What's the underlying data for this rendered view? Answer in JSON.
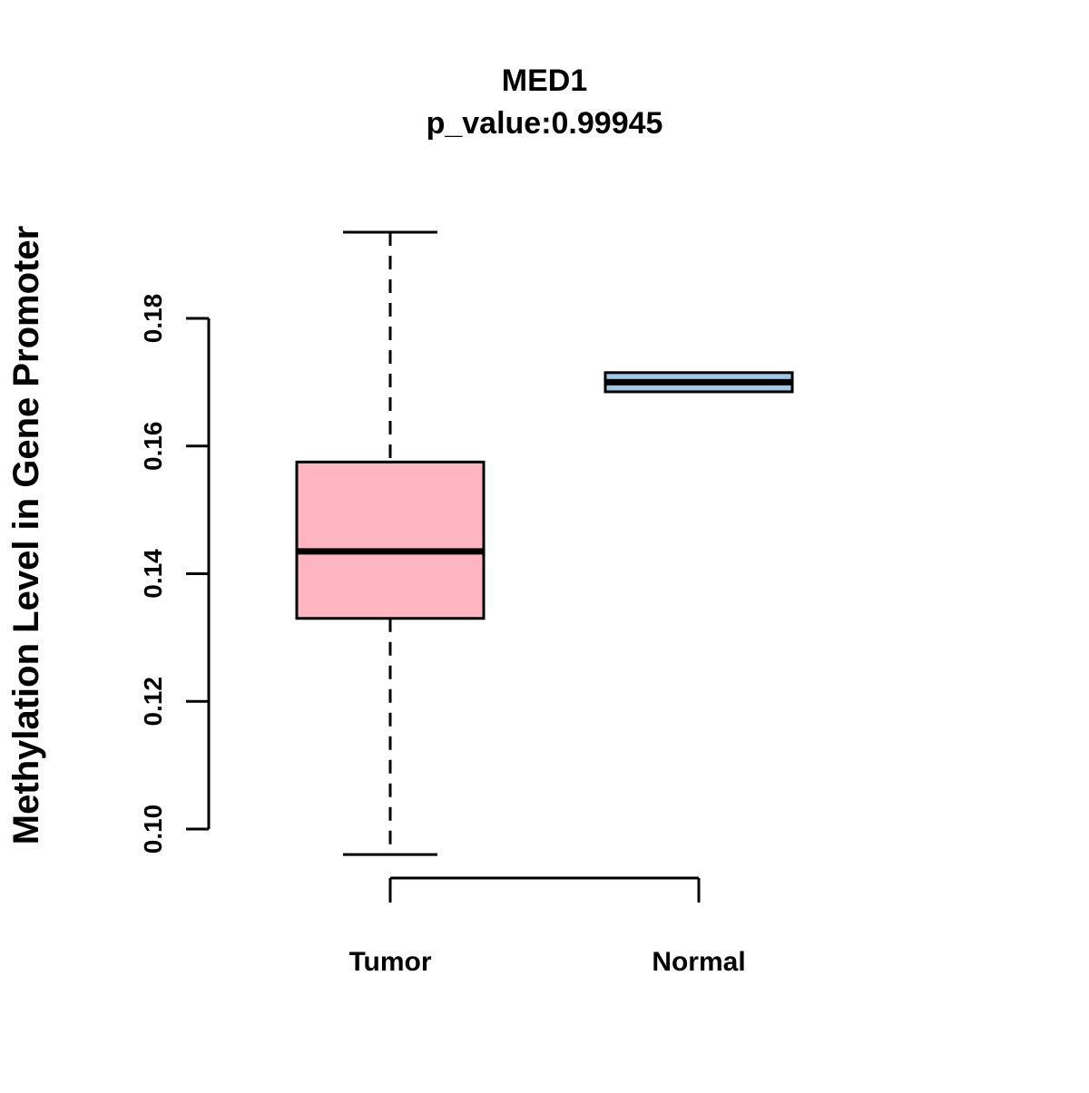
{
  "title": {
    "line1": "MED1",
    "line2": "p_value:0.99945"
  },
  "chart_data": {
    "type": "boxplot",
    "title": "MED1",
    "subtitle": "p_value:0.99945",
    "ylabel": "Methylation Level in Gene Promoter",
    "xlabel": "",
    "categories": [
      "Tumor",
      "Normal"
    ],
    "y_ticks": [
      0.1,
      0.12,
      0.14,
      0.16,
      0.18
    ],
    "ylim": [
      0.094,
      0.196
    ],
    "grid": false,
    "legend": "none",
    "series": [
      {
        "name": "Tumor",
        "color": "#FFB6C1",
        "whisker_low": 0.096,
        "q1": 0.133,
        "median": 0.1435,
        "q3": 0.1575,
        "whisker_high": 0.1935
      },
      {
        "name": "Normal",
        "color": "#9FC9E8",
        "whisker_low": 0.1685,
        "q1": 0.1685,
        "median": 0.17,
        "q3": 0.1715,
        "whisker_high": 0.1715
      }
    ],
    "colors": {
      "tumor_fill": "#FFB6C1",
      "normal_fill": "#9FC9E8",
      "stroke": "#000000"
    }
  }
}
